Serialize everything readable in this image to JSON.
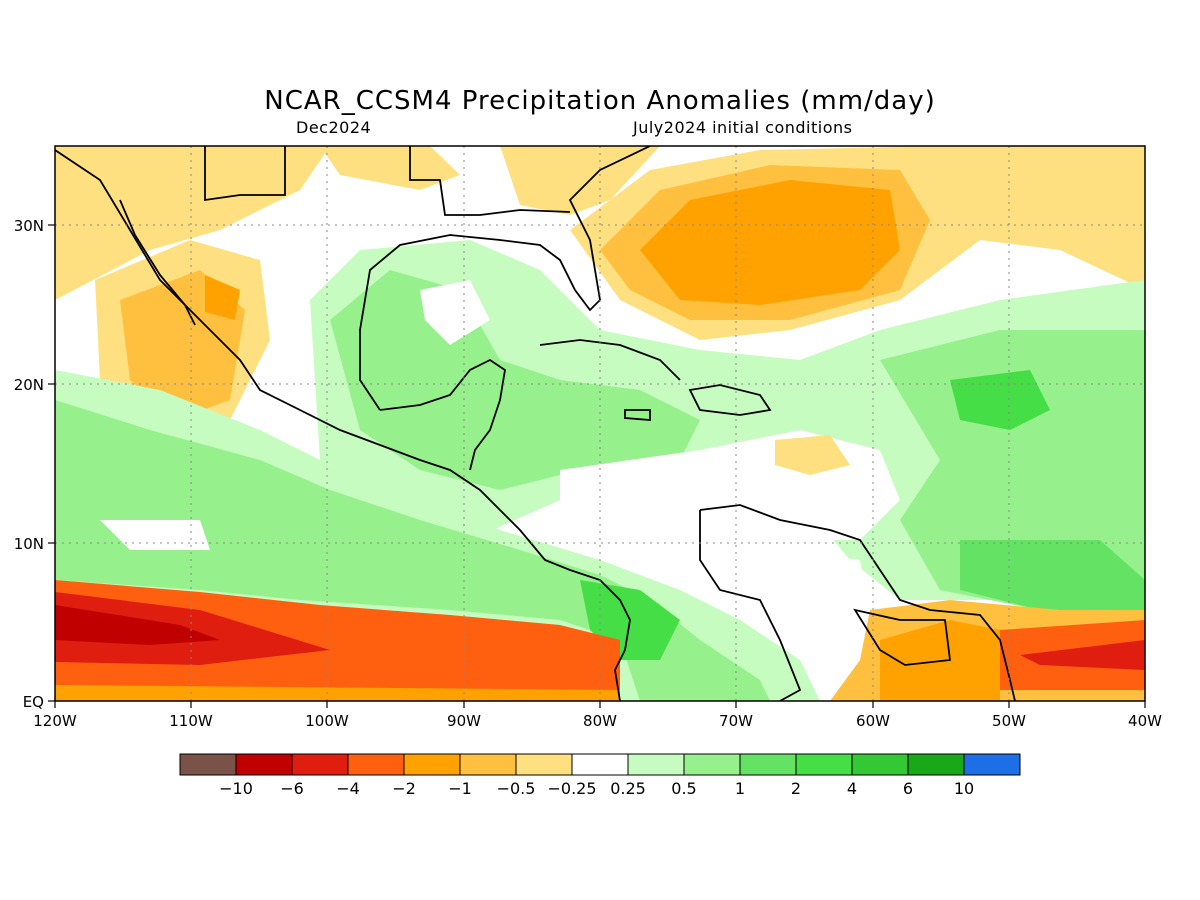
{
  "title": "NCAR_CCSM4 Precipitation Anomalies (mm/day)",
  "subtitle_left": "Dec2024",
  "subtitle_right": "July2024 initial conditions",
  "map": {
    "region": "Central America / Caribbean",
    "lon_range": [
      -120,
      -40
    ],
    "lat_range": [
      0,
      35
    ],
    "x_tick_labels": [
      "120W",
      "110W",
      "100W",
      "90W",
      "80W",
      "70W",
      "60W",
      "50W",
      "40W"
    ],
    "y_tick_labels": [
      "EQ",
      "10N",
      "20N",
      "30N"
    ],
    "grid": "dotted"
  },
  "colorbar": {
    "labels": [
      "−10",
      "−6",
      "−4",
      "−2",
      "−1",
      "−0.5",
      "−0.25",
      "0.25",
      "0.5",
      "1",
      "2",
      "4",
      "6",
      "10"
    ],
    "colors": [
      "#7a5248",
      "#c00000",
      "#e01e10",
      "#ff6010",
      "#ffa200",
      "#ffc040",
      "#ffe080",
      "#ffffff",
      "#c6fcc0",
      "#96f08c",
      "#64e264",
      "#46de46",
      "#34c834",
      "#18a818",
      "#1e6ee6"
    ]
  },
  "colors": {
    "strong_negative": "#c00000",
    "negative": "#ff6010",
    "mild_negative": "#ffc040",
    "neutral": "#ffffff",
    "mild_positive": "#96f08c",
    "positive": "#46de46"
  }
}
